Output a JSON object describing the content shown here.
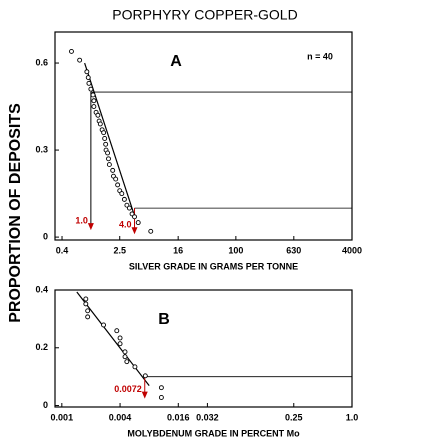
{
  "chart_data": [
    {
      "type": "scatter",
      "title": "PORPHYRY COPPER-GOLD",
      "ylabel": "PROPORTION OF DEPOSITS",
      "xlabel": "SILVER GRADE IN GRAMS PER TONNE",
      "panel_label": "A",
      "note": "n = 40",
      "xscale": "log",
      "xlim": [
        0.32,
        4000
      ],
      "ylim": [
        -0.01,
        0.707
      ],
      "xticks": [
        0.4,
        2.5,
        16,
        100,
        630,
        4000
      ],
      "yticks": [
        0,
        0.3,
        0.6
      ],
      "x": [
        0.54,
        0.7,
        0.88,
        0.92,
        0.94,
        1.0,
        1.07,
        1.1,
        1.1,
        1.18,
        1.25,
        1.3,
        1.35,
        1.43,
        1.5,
        1.55,
        1.6,
        1.62,
        1.7,
        1.75,
        1.8,
        2.0,
        2.05,
        2.2,
        2.34,
        2.5,
        2.67,
        2.9,
        3.14,
        3.4,
        3.7,
        4.0,
        4.5,
        6.7
      ],
      "y": [
        0.64,
        0.61,
        0.57,
        0.55,
        0.53,
        0.51,
        0.49,
        0.47,
        0.45,
        0.43,
        0.42,
        0.4,
        0.39,
        0.37,
        0.36,
        0.34,
        0.32,
        0.3,
        0.29,
        0.27,
        0.25,
        0.23,
        0.21,
        0.2,
        0.18,
        0.16,
        0.15,
        0.13,
        0.11,
        0.1,
        0.08,
        0.07,
        0.05,
        0.02
      ],
      "fit_line": {
        "x": [
          0.82,
          4.1
        ],
        "y": [
          0.6,
          0.065
        ]
      },
      "cutoffs": [
        {
          "label": "1.0",
          "x": 1.0,
          "y": 0.5,
          "arrow_end": 0.024
        },
        {
          "label": "4.0",
          "x": 4.0,
          "y": 0.1,
          "arrow_end": 0.01
        }
      ],
      "color": "#000000",
      "arrow_color": "#c00000"
    },
    {
      "type": "scatter",
      "xlabel": "MOLYBDENUM GRADE IN PERCENT Mo",
      "panel_label": "B",
      "xscale": "log",
      "xlim": [
        0.00085,
        1.0
      ],
      "ylim": [
        -0.005,
        0.4
      ],
      "xticks": [
        0.001,
        0.004,
        0.016,
        0.032,
        0.25,
        {
          "value": 1.0,
          "label": "1.0"
        }
      ],
      "yticks": [
        0,
        0.2,
        0.4
      ],
      "x": [
        0.00177,
        0.00177,
        0.00185,
        0.00185,
        0.0027,
        0.0037,
        0.004,
        0.004,
        0.0045,
        0.0045,
        0.0047,
        0.0057,
        0.0073,
        0.0107,
        0.0107
      ],
      "y": [
        0.369,
        0.352,
        0.328,
        0.307,
        0.279,
        0.259,
        0.234,
        0.214,
        0.186,
        0.169,
        0.152,
        0.134,
        0.103,
        0.062,
        0.028
      ],
      "fit_line": {
        "x": [
          0.00143,
          0.008
        ],
        "y": [
          0.393,
          0.069
        ]
      },
      "cutoffs": [
        {
          "label": "0.0072",
          "x": 0.0072,
          "y": 0.1,
          "arrow_end": 0.024
        }
      ],
      "color": "#000000",
      "arrow_color": "#c00000"
    }
  ]
}
